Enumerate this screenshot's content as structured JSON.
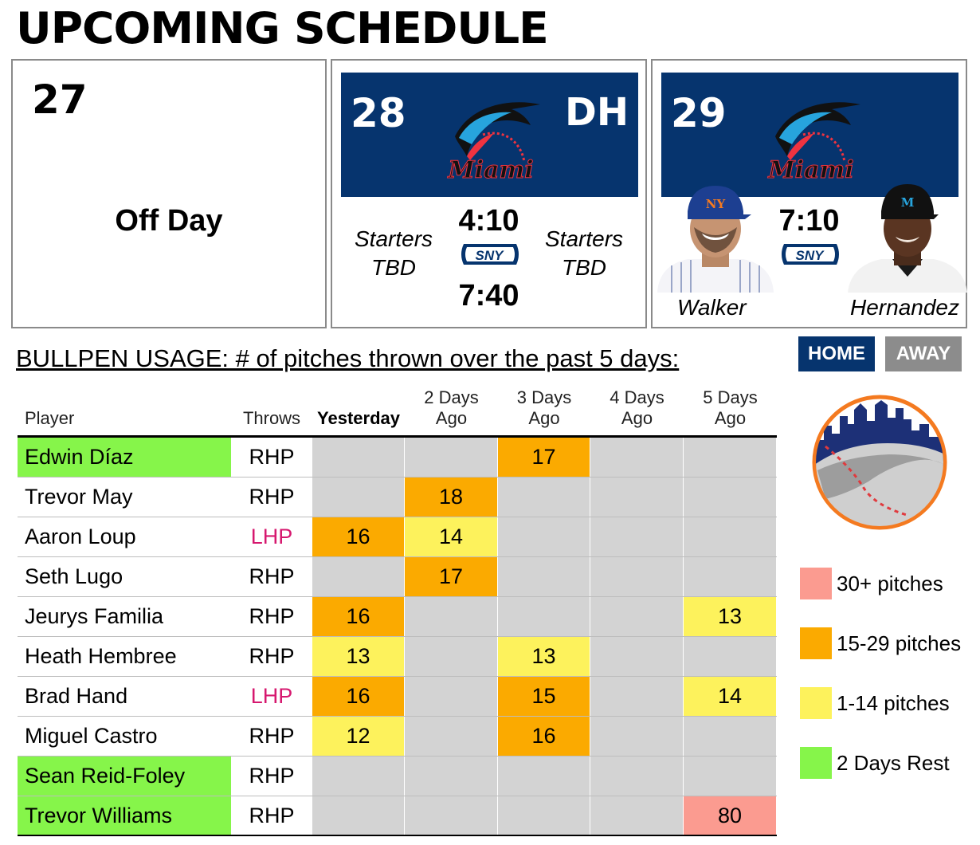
{
  "title": "UPCOMING SCHEDULE",
  "schedule": {
    "day1": {
      "date": "27",
      "label": "Off Day"
    },
    "day2": {
      "date": "28",
      "tag": "DH",
      "opponent_logo_text": "Miami",
      "starter_left": [
        "Starters",
        "TBD"
      ],
      "starter_right": [
        "Starters",
        "TBD"
      ],
      "time1": "4:10",
      "time2": "7:40",
      "network": "SNY"
    },
    "day3": {
      "date": "29",
      "opponent_logo_text": "Miami",
      "time": "7:10",
      "network": "SNY",
      "home_pitcher": "Walker",
      "away_pitcher": "Hernandez"
    }
  },
  "bullpen": {
    "title": "BULLPEN USAGE: # of pitches thrown over the past 5 days:",
    "tabs": {
      "home": "HOME",
      "away": "AWAY"
    },
    "columns": {
      "player": "Player",
      "throws": "Throws",
      "yesterday": "Yesterday",
      "d2": [
        "2 Days",
        "Ago"
      ],
      "d3": [
        "3 Days",
        "Ago"
      ],
      "d4": [
        "4 Days",
        "Ago"
      ],
      "d5": [
        "5 Days",
        "Ago"
      ]
    },
    "rows": [
      {
        "player": "Edwin Díaz",
        "throws": "RHP",
        "rested": true,
        "pitches": [
          "",
          "",
          "17",
          "",
          ""
        ]
      },
      {
        "player": "Trevor May",
        "throws": "RHP",
        "rested": false,
        "pitches": [
          "",
          "18",
          "",
          "",
          ""
        ]
      },
      {
        "player": "Aaron Loup",
        "throws": "LHP",
        "rested": false,
        "pitches": [
          "16",
          "14",
          "",
          "",
          ""
        ]
      },
      {
        "player": "Seth Lugo",
        "throws": "RHP",
        "rested": false,
        "pitches": [
          "",
          "17",
          "",
          "",
          ""
        ]
      },
      {
        "player": "Jeurys Familia",
        "throws": "RHP",
        "rested": false,
        "pitches": [
          "16",
          "",
          "",
          "",
          "13"
        ]
      },
      {
        "player": "Heath Hembree",
        "throws": "RHP",
        "rested": false,
        "pitches": [
          "13",
          "",
          "13",
          "",
          ""
        ]
      },
      {
        "player": "Brad Hand",
        "throws": "LHP",
        "rested": false,
        "pitches": [
          "16",
          "",
          "15",
          "",
          "14"
        ]
      },
      {
        "player": "Miguel Castro",
        "throws": "RHP",
        "rested": false,
        "pitches": [
          "12",
          "",
          "16",
          "",
          ""
        ]
      },
      {
        "player": "Sean Reid-Foley",
        "throws": "RHP",
        "rested": true,
        "pitches": [
          "",
          "",
          "",
          "",
          ""
        ]
      },
      {
        "player": "Trevor Williams",
        "throws": "RHP",
        "rested": true,
        "pitches": [
          "",
          "",
          "",
          "",
          "80"
        ]
      }
    ]
  },
  "legend": [
    {
      "label": "30+ pitches",
      "color": "#fb9b90"
    },
    {
      "label": "15-29 pitches",
      "color": "#fbaa00"
    },
    {
      "label": "1-14 pitches",
      "color": "#fdf25c"
    },
    {
      "label": "2 Days Rest",
      "color": "#86f54a"
    }
  ],
  "colors": {
    "navy": "#06346e",
    "lhp": "#d6186f",
    "rested": "#86f54a",
    "empty_cell": "#d3d3d3",
    "high": "#fb9b90",
    "mid": "#fbaa00",
    "low": "#fdf25c"
  }
}
